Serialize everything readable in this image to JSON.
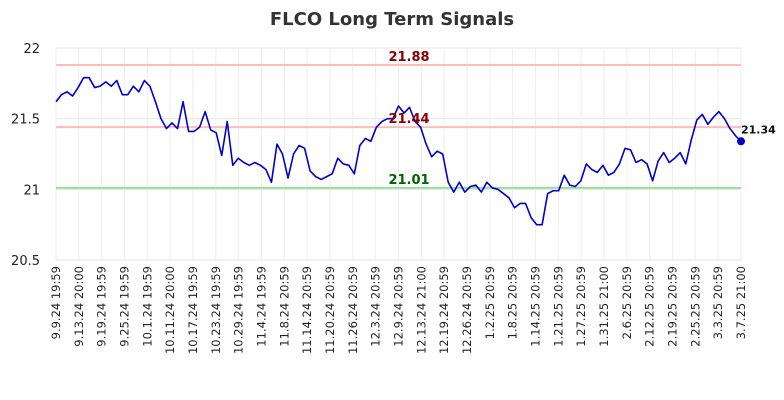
{
  "chart_data": {
    "type": "line",
    "title": "FLCO Long Term Signals",
    "xlabel": "",
    "ylabel": "",
    "ylim": [
      20.5,
      22
    ],
    "yticks": [
      "20.5",
      "21",
      "21.5",
      "22"
    ],
    "grid": true,
    "x_tick_labels": [
      "9.9.24 19:59",
      "9.13.24 20:00",
      "9.19.24 19:59",
      "9.25.24 19:59",
      "10.1.24 19:59",
      "10.11.24 20:00",
      "10.17.24 19:59",
      "10.23.24 19:59",
      "10.29.24 19:59",
      "11.4.24 19:59",
      "11.8.24 20:59",
      "11.14.24 20:59",
      "11.20.24 20:59",
      "11.26.24 20:59",
      "12.3.24 20:59",
      "12.9.24 20:59",
      "12.13.24 21:00",
      "12.19.24 20:59",
      "12.26.24 20:59",
      "1.2.25 20:59",
      "1.8.25 20:59",
      "1.14.25 20:59",
      "1.21.25 20:59",
      "1.27.25 20:59",
      "1.31.25 21:00",
      "2.6.25 20:59",
      "2.12.25 20:59",
      "2.19.25 20:59",
      "2.25.25 20:59",
      "3.3.25 20:59",
      "3.7.25 21:00"
    ],
    "reference_lines": [
      {
        "value": 21.88,
        "label": "21.88",
        "color": "#ffbbbb",
        "label_color": "#8b0000"
      },
      {
        "value": 21.44,
        "label": "21.44",
        "color": "#ffbbbb",
        "label_color": "#8b0000"
      },
      {
        "value": 21.01,
        "label": "21.01",
        "color": "#99dd99",
        "label_color": "#006400"
      }
    ],
    "last_value_label": "21.34",
    "series": [
      {
        "color": "#0000cc",
        "values": [
          21.62,
          21.67,
          21.69,
          21.66,
          21.72,
          21.79,
          21.79,
          21.72,
          21.73,
          21.76,
          21.73,
          21.77,
          21.67,
          21.67,
          21.73,
          21.69,
          21.77,
          21.73,
          21.62,
          21.5,
          21.43,
          21.47,
          21.43,
          21.62,
          21.41,
          21.41,
          21.44,
          21.55,
          21.42,
          21.4,
          21.24,
          21.48,
          21.17,
          21.22,
          21.19,
          21.17,
          21.19,
          21.17,
          21.14,
          21.05,
          21.32,
          21.25,
          21.08,
          21.25,
          21.31,
          21.29,
          21.13,
          21.09,
          21.07,
          21.09,
          21.11,
          21.22,
          21.18,
          21.17,
          21.11,
          21.31,
          21.36,
          21.34,
          21.44,
          21.48,
          21.5,
          21.5,
          21.59,
          21.54,
          21.58,
          21.48,
          21.44,
          21.32,
          21.23,
          21.27,
          21.25,
          21.05,
          20.98,
          21.05,
          20.98,
          21.02,
          21.03,
          20.98,
          21.05,
          21.01,
          21.0,
          20.97,
          20.94,
          20.87,
          20.9,
          20.9,
          20.8,
          20.75,
          20.75,
          20.97,
          20.99,
          20.99,
          21.1,
          21.03,
          21.02,
          21.06,
          21.18,
          21.14,
          21.12,
          21.17,
          21.1,
          21.12,
          21.18,
          21.29,
          21.28,
          21.19,
          21.21,
          21.18,
          21.06,
          21.2,
          21.26,
          21.19,
          21.22,
          21.26,
          21.18,
          21.35,
          21.49,
          21.53,
          21.46,
          21.51,
          21.55,
          21.5,
          21.43,
          21.38,
          21.34
        ]
      }
    ]
  }
}
